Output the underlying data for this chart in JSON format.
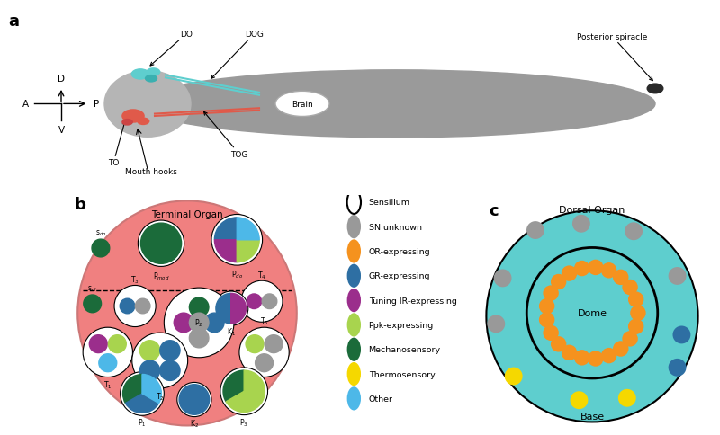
{
  "bg_color": "#ffffff",
  "colors": {
    "gray": "#999999",
    "orange": "#f5921e",
    "teal": "#2e6fa3",
    "purple": "#9b2e8c",
    "green_light": "#a8d44e",
    "green_dark": "#1b6b3a",
    "yellow": "#f5d800",
    "blue": "#4db8e8",
    "pink_bg": "#f08080",
    "teal_bg": "#5ecece",
    "body_gray": "#9a9a9a",
    "red_organ": "#e05a4a"
  },
  "legend_items": [
    {
      "label": "Sensillum",
      "color": "#ffffff",
      "edge": "#000000"
    },
    {
      "label": "SN unknown",
      "color": "#999999"
    },
    {
      "label": "OR-expressing",
      "color": "#f5921e"
    },
    {
      "label": "GR-expressing",
      "color": "#2e6fa3"
    },
    {
      "label": "Tuning IR-expressing",
      "color": "#9b2e8c"
    },
    {
      "label": "Ppk-expressing",
      "color": "#a8d44e"
    },
    {
      "label": "Mechanosensory",
      "color": "#1b6b3a"
    },
    {
      "label": "Thermosensory",
      "color": "#f5d800"
    },
    {
      "label": "Other",
      "color": "#4db8e8"
    }
  ]
}
